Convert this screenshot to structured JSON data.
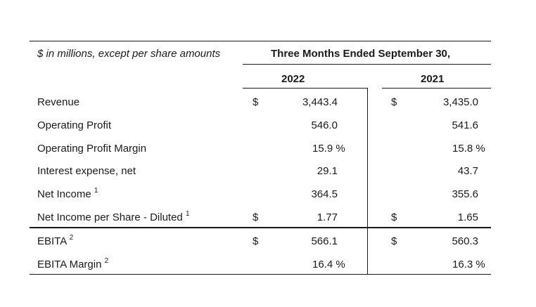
{
  "table": {
    "units_note": "$ in millions, except per share amounts",
    "period_header": "Three Months Ended September 30,",
    "years": [
      "2022",
      "2021"
    ],
    "rows": [
      {
        "label": "Revenue",
        "sup": "",
        "cur_2022": "$",
        "val_2022": "3,443.4",
        "cur_2021": "$",
        "val_2021": "3,435.0"
      },
      {
        "label": "Operating Profit",
        "sup": "",
        "cur_2022": "",
        "val_2022": "546.0",
        "cur_2021": "",
        "val_2021": "541.6"
      },
      {
        "label": "Operating Profit Margin",
        "sup": "",
        "cur_2022": "",
        "val_2022": "15.9 %",
        "cur_2021": "",
        "val_2021": "15.8 %"
      },
      {
        "label": "Interest expense, net",
        "sup": "",
        "cur_2022": "",
        "val_2022": "29.1",
        "cur_2021": "",
        "val_2021": "43.7"
      },
      {
        "label": "Net Income",
        "sup": "1",
        "cur_2022": "",
        "val_2022": "364.5",
        "cur_2021": "",
        "val_2021": "355.6"
      },
      {
        "label": "Net Income per Share - Diluted",
        "sup": "1",
        "cur_2022": "$",
        "val_2022": "1.77",
        "cur_2021": "$",
        "val_2021": "1.65"
      },
      {
        "label": "EBITA",
        "sup": "2",
        "cur_2022": "$",
        "val_2022": "566.1",
        "cur_2021": "$",
        "val_2021": "560.3"
      },
      {
        "label": "EBITA Margin",
        "sup": "2",
        "cur_2022": "",
        "val_2022": "16.4 %",
        "cur_2021": "",
        "val_2021": "16.3 %"
      }
    ]
  }
}
